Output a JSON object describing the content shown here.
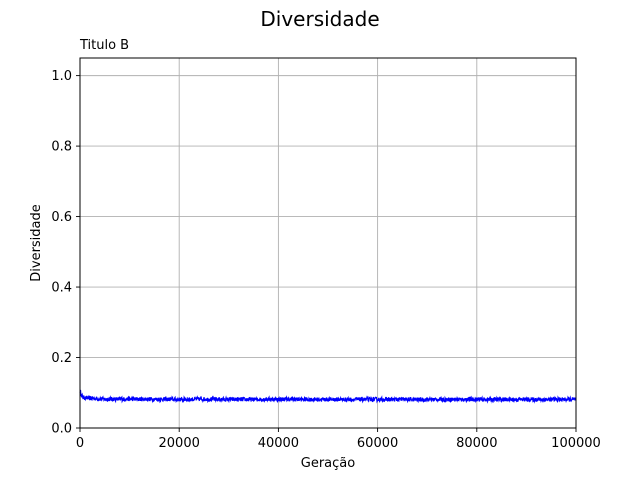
{
  "chart_data": {
    "type": "line",
    "title": "Diversidade",
    "subtitle": "Titulo B",
    "xlabel": "Geração",
    "ylabel": "Diversidade",
    "xlim": [
      0,
      100000
    ],
    "ylim": [
      0,
      1.05
    ],
    "grid": true,
    "x_ticks": [
      0,
      20000,
      40000,
      60000,
      80000,
      100000
    ],
    "x_tick_labels": [
      "0",
      "20000",
      "40000",
      "60000",
      "80000",
      "100000"
    ],
    "y_ticks": [
      0.0,
      0.2,
      0.4,
      0.6,
      0.8,
      1.0
    ],
    "y_tick_labels": [
      "0.0",
      "0.2",
      "0.4",
      "0.6",
      "0.8",
      "1.0"
    ],
    "series": [
      {
        "color": "#0000ff",
        "x": [
          0,
          500,
          1000,
          5000,
          10000,
          15000,
          20000,
          25000,
          30000,
          35000,
          40000,
          45000,
          50000,
          55000,
          60000,
          65000,
          70000,
          75000,
          80000,
          85000,
          90000,
          95000,
          100000
        ],
        "y": [
          0.105,
          0.088,
          0.085,
          0.082,
          0.082,
          0.082,
          0.081,
          0.082,
          0.081,
          0.081,
          0.082,
          0.081,
          0.081,
          0.081,
          0.081,
          0.081,
          0.081,
          0.081,
          0.081,
          0.081,
          0.081,
          0.081,
          0.081
        ],
        "noise_band": 0.006
      }
    ]
  }
}
